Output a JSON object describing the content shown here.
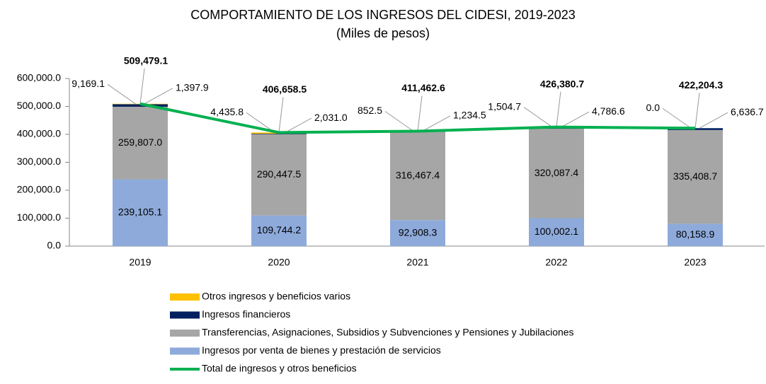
{
  "chart_data": {
    "type": "stacked-bar-line",
    "title": "COMPORTAMIENTO DE LOS INGRESOS DEL CIDESI, 2019-2023",
    "subtitle": "(Miles de pesos)",
    "categories": [
      "2019",
      "2020",
      "2021",
      "2022",
      "2023"
    ],
    "ylim": [
      0,
      600000
    ],
    "yticks": [
      {
        "value": 0,
        "label": "0.0"
      },
      {
        "value": 100000,
        "label": "100,000.0"
      },
      {
        "value": 200000,
        "label": "200,000.0"
      },
      {
        "value": 300000,
        "label": "300,000.0"
      },
      {
        "value": 400000,
        "label": "400,000.0"
      },
      {
        "value": 500000,
        "label": "500,000.0"
      },
      {
        "value": 600000,
        "label": "600,000.0"
      }
    ],
    "series": [
      {
        "name": "Ingresos por venta de bienes y prestación de servicios",
        "color": "#8eaadb",
        "values": [
          239105.1,
          109744.2,
          92908.3,
          100002.1,
          80158.9
        ],
        "value_labels": [
          "239,105.1",
          "109,744.2",
          "92,908.3",
          "100,002.1",
          "80,158.9"
        ]
      },
      {
        "name": "Transferencias, Asignaciones, Subsidios y Subvenciones y Pensiones y Jubilaciones",
        "color": "#a6a6a6",
        "values": [
          259807.0,
          290447.5,
          316467.4,
          320087.4,
          335408.7
        ],
        "value_labels": [
          "259,807.0",
          "290,447.5",
          "316,467.4",
          "320,087.4",
          "335,408.7"
        ]
      },
      {
        "name": "Ingresos financieros",
        "color": "#002060",
        "values": [
          9169.1,
          2031.0,
          1234.5,
          4786.6,
          6636.7
        ],
        "value_labels": [
          "9,169.1",
          "2,031.0",
          "1,234.5",
          "4,786.6",
          "6,636.7"
        ]
      },
      {
        "name": "Otros ingresos y beneficios varios",
        "color": "#ffc000",
        "values": [
          1397.9,
          4435.8,
          852.5,
          1504.7,
          0.0
        ],
        "value_labels": [
          "1,397.9",
          "4,435.8",
          "852.5",
          "1,504.7",
          "0.0"
        ]
      }
    ],
    "line": {
      "name": "Total de ingresos y otros beneficios",
      "color": "#00b050",
      "values": [
        509479.1,
        406658.5,
        411462.6,
        426380.7,
        422204.3
      ],
      "value_labels": [
        "509,479.1",
        "406,658.5",
        "411,462.6",
        "426,380.7",
        "422,204.3"
      ]
    }
  }
}
